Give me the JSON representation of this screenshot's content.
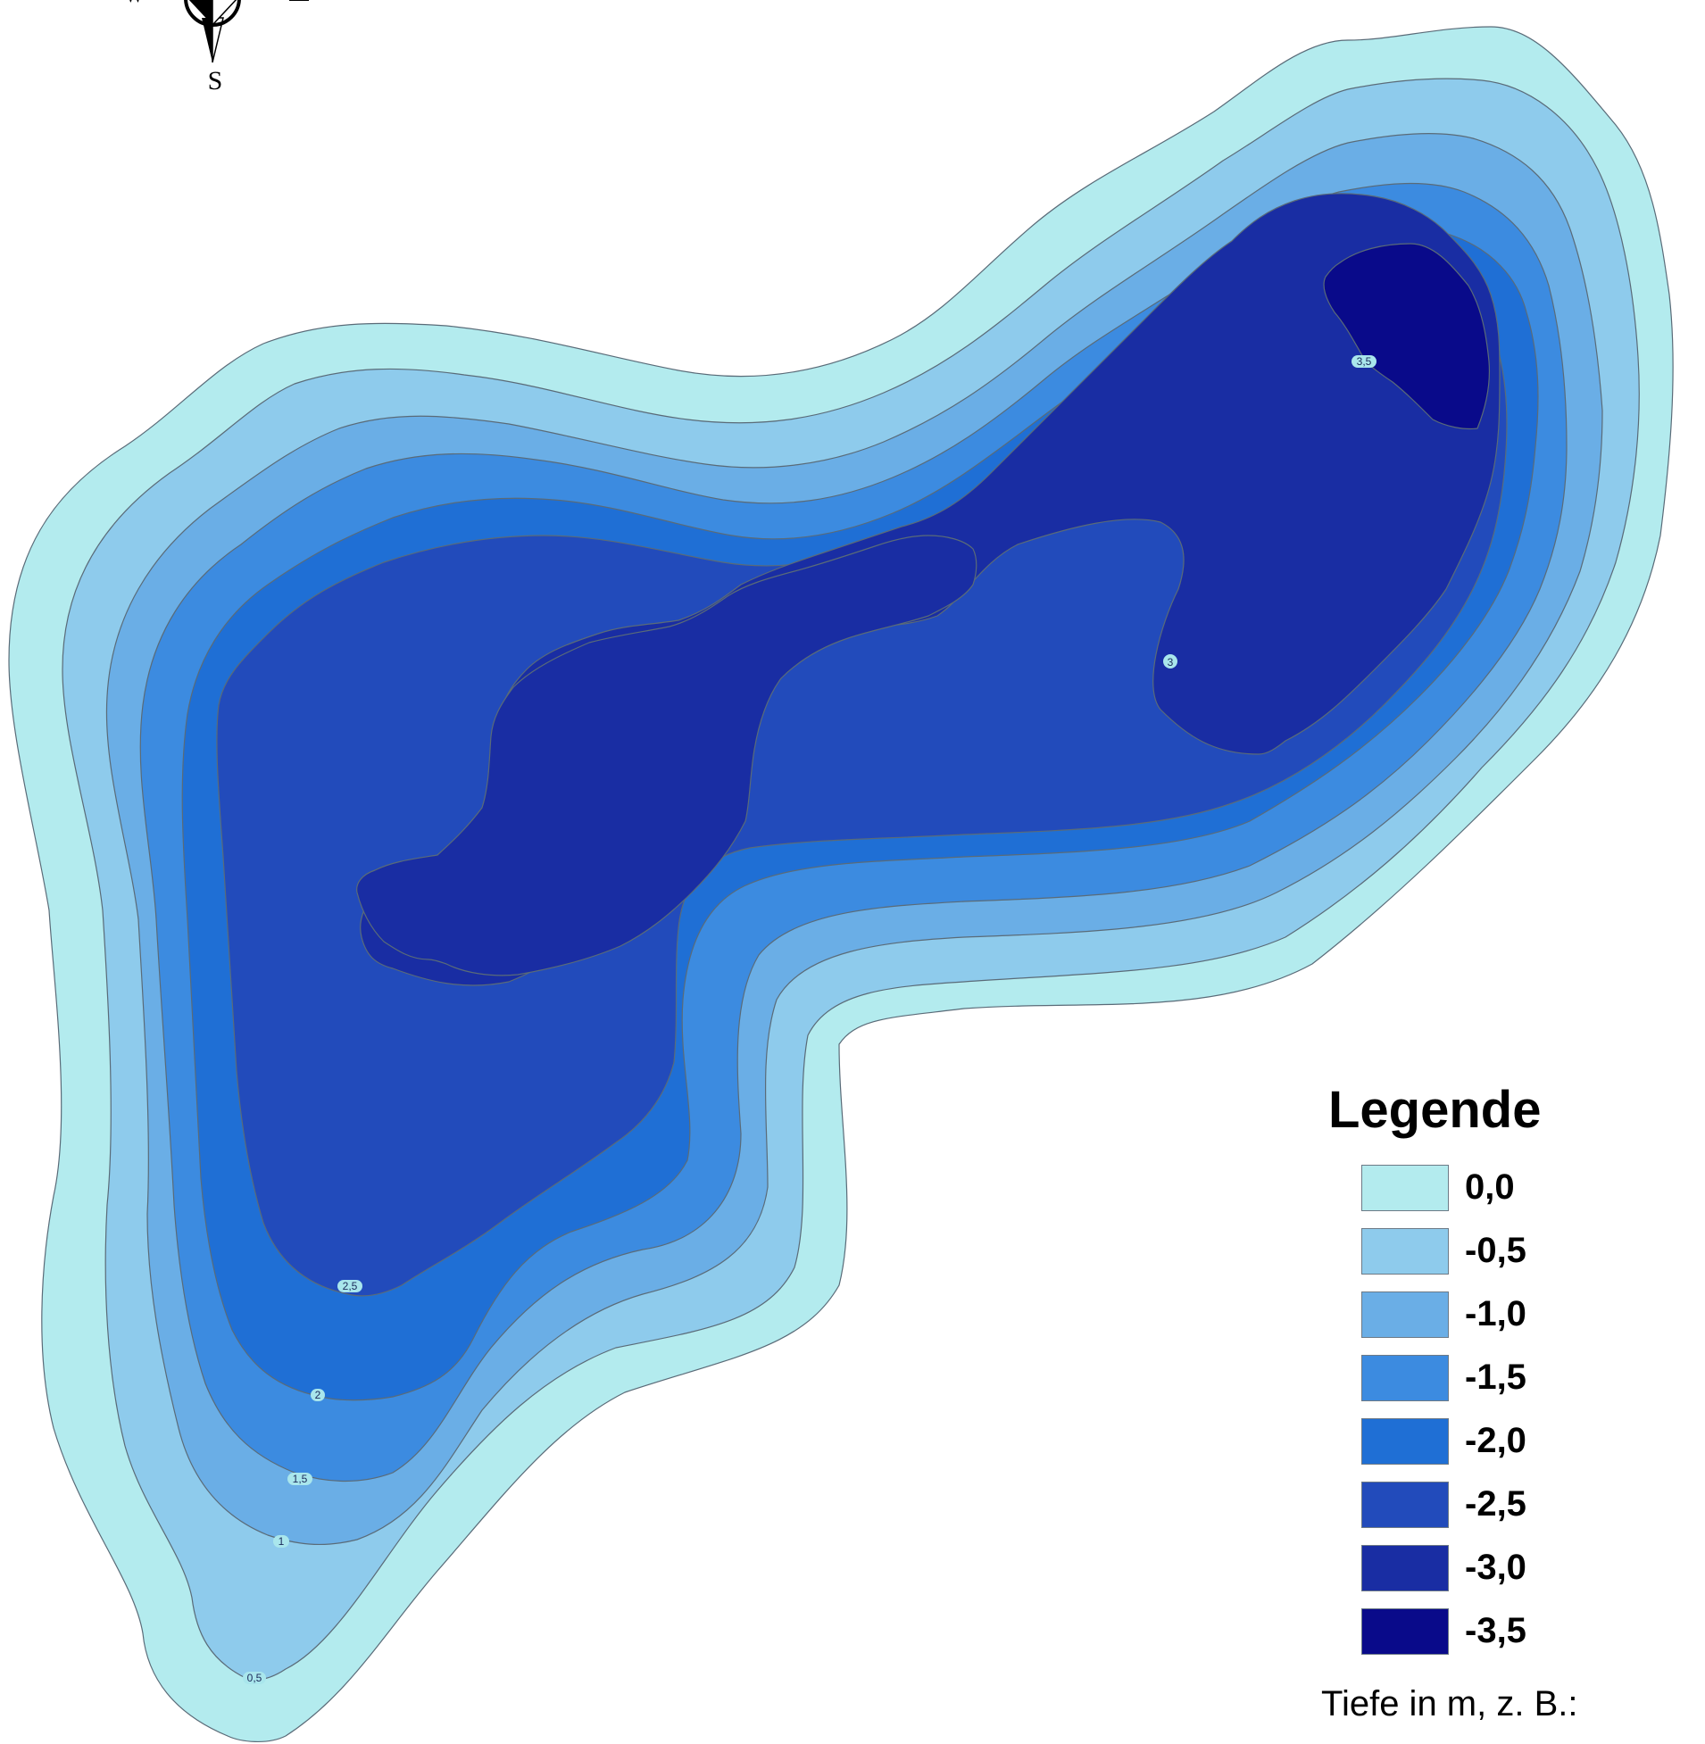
{
  "compass": {
    "south_label": "S",
    "west_label": "W",
    "east_label": "E"
  },
  "legend": {
    "title": "Legende",
    "items": [
      {
        "label": "0,0",
        "color": "#b3ebee"
      },
      {
        "label": "-0,5",
        "color": "#8ecbec"
      },
      {
        "label": "-1,0",
        "color": "#6aaee6"
      },
      {
        "label": "-1,5",
        "color": "#3c8be0"
      },
      {
        "label": "-2,0",
        "color": "#1f6fd5"
      },
      {
        "label": "-2,5",
        "color": "#224bbb"
      },
      {
        "label": "-3,0",
        "color": "#192da3"
      },
      {
        "label": "-3,5",
        "color": "#090a8a"
      }
    ],
    "note": "Tiefe in m, z. B.:"
  },
  "contour_labels": [
    "0,5",
    "1",
    "1,5",
    "2",
    "2,5",
    "3",
    "3,5"
  ]
}
